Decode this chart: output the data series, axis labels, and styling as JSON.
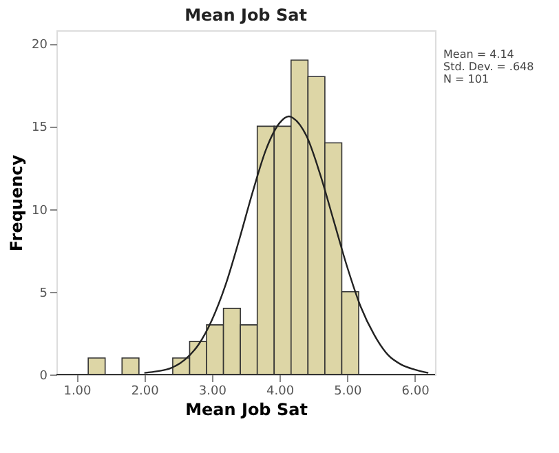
{
  "chart_data": {
    "type": "histogram",
    "title": "Mean Job Sat",
    "xlabel": "Mean Job Sat",
    "ylabel": "Frequency",
    "bins": [
      1.17,
      1.42,
      1.67,
      1.92,
      2.17,
      2.42,
      2.67,
      2.92,
      3.17,
      3.42,
      3.67,
      3.92,
      4.17,
      4.42,
      4.67,
      4.92,
      5.17
    ],
    "values": [
      1,
      0,
      1,
      0,
      0,
      1,
      2,
      3,
      4,
      3,
      15,
      15,
      19,
      18,
      14,
      5
    ],
    "color": "#ddd6a6",
    "series": [
      {
        "type": "line",
        "color": "#222222",
        "x": [
          2.0,
          2.2,
          2.4,
          2.6,
          2.8,
          3.0,
          3.2,
          3.4,
          3.6,
          3.8,
          4.0,
          4.14,
          4.2,
          4.4,
          4.6,
          4.8,
          5.0,
          5.2,
          5.4,
          5.6,
          5.8,
          6.0,
          6.2
        ],
        "values": [
          0.1,
          0.2,
          0.4,
          0.9,
          1.8,
          3.3,
          5.4,
          8.1,
          11.0,
          13.6,
          15.2,
          15.6,
          15.5,
          14.4,
          12.1,
          9.3,
          6.5,
          4.1,
          2.4,
          1.2,
          0.6,
          0.3,
          0.1
        ]
      }
    ],
    "xlim": [
      0.7,
      6.3
    ],
    "xticks": [
      {
        "value": 1,
        "label": "1.00"
      },
      {
        "value": 2,
        "label": "2.00"
      },
      {
        "value": 3,
        "label": "3.00"
      },
      {
        "value": 4,
        "label": "4.00"
      },
      {
        "value": 5,
        "label": "5.00"
      },
      {
        "value": 6,
        "label": "6.00"
      }
    ],
    "ylim": [
      0,
      20.8
    ],
    "yticks": [
      0,
      5,
      10,
      15,
      20
    ],
    "grid": false,
    "annotations": [
      "Mean = 4.14",
      "Std. Dev. = .648",
      "N = 101"
    ]
  }
}
